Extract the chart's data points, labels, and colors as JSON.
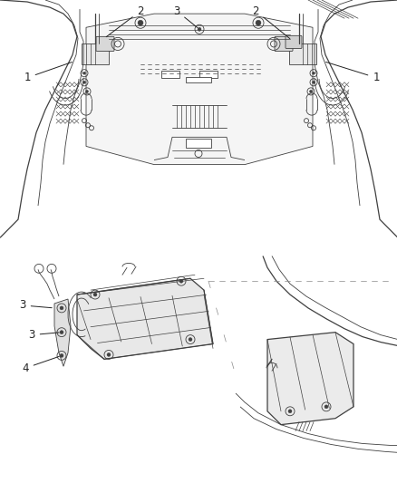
{
  "background_color": "#ffffff",
  "fig_width": 4.39,
  "fig_height": 5.33,
  "dpi": 100,
  "line_color": "#404040",
  "label_fontsize": 8.5,
  "label_color": "#222222"
}
